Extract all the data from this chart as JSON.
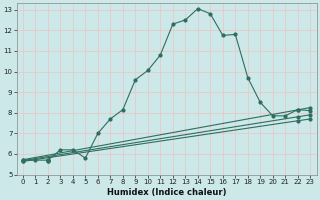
{
  "bg_color": "#cce8e8",
  "grid_color": "#e8c8c8",
  "line_color": "#2e6e60",
  "xlabel": "Humidex (Indice chaleur)",
  "xlim": [
    -0.5,
    23.5
  ],
  "ylim": [
    5.3,
    13.3
  ],
  "yticks": [
    5,
    6,
    7,
    8,
    9,
    10,
    11,
    12,
    13
  ],
  "xticks": [
    0,
    1,
    2,
    3,
    4,
    5,
    6,
    7,
    8,
    9,
    10,
    11,
    12,
    13,
    14,
    15,
    16,
    17,
    18,
    19,
    20,
    21,
    22,
    23
  ],
  "curve1_x": [
    0,
    1,
    2,
    3,
    4,
    5,
    6,
    7,
    8,
    9,
    10,
    11,
    12,
    13,
    14,
    15,
    16,
    17,
    18,
    19,
    20,
    21,
    22,
    23
  ],
  "curve1_y": [
    5.7,
    5.7,
    5.7,
    6.2,
    6.2,
    5.8,
    7.0,
    7.7,
    8.15,
    9.6,
    10.05,
    10.8,
    12.3,
    12.5,
    13.05,
    12.8,
    11.75,
    11.8,
    9.7,
    8.5,
    7.85,
    7.85,
    8.15,
    8.1
  ],
  "line2_x": [
    0,
    1,
    2,
    3,
    22,
    23
  ],
  "line2_y": [
    5.72,
    5.72,
    5.72,
    5.72,
    8.15,
    8.25
  ],
  "line3_x": [
    0,
    1,
    2,
    3,
    22,
    23
  ],
  "line3_y": [
    5.68,
    5.68,
    5.68,
    5.68,
    7.8,
    7.9
  ],
  "line4_x": [
    0,
    1,
    2,
    3,
    22,
    23
  ],
  "line4_y": [
    5.64,
    5.64,
    5.64,
    5.64,
    7.6,
    7.7
  ]
}
